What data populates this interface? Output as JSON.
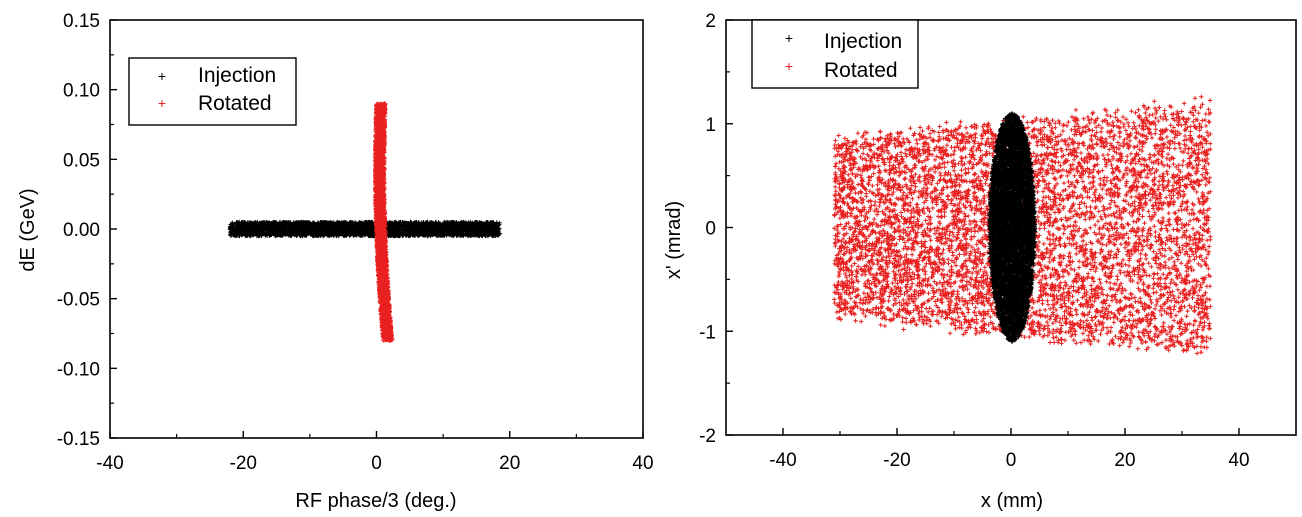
{
  "chart_data": [
    {
      "type": "scatter",
      "title": "",
      "xlabel": "RF phase/3 (deg.)",
      "ylabel": "dE (GeV)",
      "xlim": [
        -40,
        40
      ],
      "ylim": [
        -0.15,
        0.15
      ],
      "xticks": [
        "-40",
        "-20",
        "0",
        "20",
        "40"
      ],
      "yticks": [
        "-0.15",
        "-0.10",
        "-0.05",
        "0.00",
        "0.05",
        "0.10",
        "0.15"
      ],
      "legend_position": "top-left",
      "series": [
        {
          "name": "Injection",
          "color": "#000000",
          "marker": "plus",
          "shape": "horizontal band",
          "x_range": [
            -22,
            18.5
          ],
          "y_range": [
            -0.005,
            0.005
          ]
        },
        {
          "name": "Rotated",
          "color": "#e8201f",
          "marker": "plus",
          "shape": "curved vertical arc",
          "x_range": [
            -1.5,
            2.5
          ],
          "y_range": [
            -0.08,
            0.09
          ]
        }
      ]
    },
    {
      "type": "scatter",
      "title": "",
      "xlabel": "x (mm)",
      "ylabel": "x' (mrad)",
      "xlim": [
        -50,
        50
      ],
      "ylim": [
        -2,
        2
      ],
      "xticks": [
        "-40",
        "-20",
        "0",
        "20",
        "40"
      ],
      "yticks": [
        "-2",
        "-1",
        "0",
        "1",
        "2"
      ],
      "legend_position": "top-left",
      "series": [
        {
          "name": "Injection",
          "color": "#000000",
          "marker": "plus",
          "shape": "narrow vertical ellipse",
          "x_range": [
            -4,
            4
          ],
          "y_range": [
            -1.1,
            1.1
          ]
        },
        {
          "name": "Rotated",
          "color": "#e8201f",
          "marker": "plus",
          "shape": "wide diffuse cloud",
          "x_range": [
            -31,
            35
          ],
          "y_range": [
            -1.4,
            1.3
          ]
        }
      ]
    }
  ]
}
